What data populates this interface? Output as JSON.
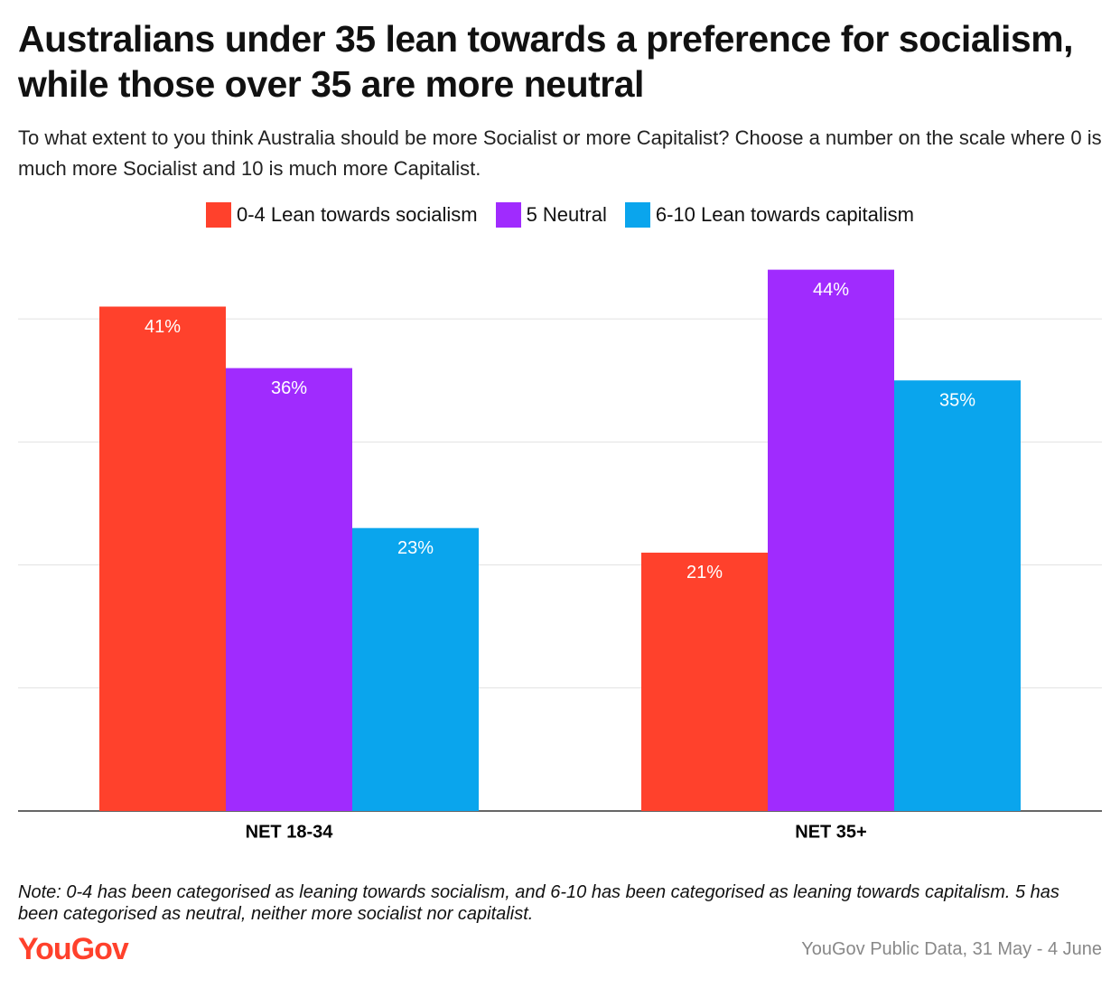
{
  "title": "Australians under 35 lean towards a preference for socialism, while those over 35 are more neutral",
  "subtitle": "To what extent to you think Australia should be more Socialist or more Capitalist? Choose a number on the scale where 0 is much more Socialist and 10 is much more Capitalist.",
  "note": "Note: 0-4 has been categorised as leaning towards socialism, and 6-10 has been categorised as leaning towards capitalism. 5 has been categorised as neutral, neither more socialist nor capitalist.",
  "logo": "YouGov",
  "source": "YouGov Public Data, 31 May - 4 June",
  "chart_data": {
    "type": "bar",
    "categories": [
      "NET 18-34",
      "NET 35+"
    ],
    "series": [
      {
        "name": "0-4 Lean towards socialism",
        "color": "#ff412c",
        "values": [
          41,
          21
        ],
        "value_labels": [
          "41%",
          "21%"
        ]
      },
      {
        "name": "5 Neutral",
        "color": "#a02bfe",
        "values": [
          36,
          44
        ],
        "value_labels": [
          "36%",
          "44%"
        ]
      },
      {
        "name": "6-10 Lean towards capitalism",
        "color": "#0aa5ed",
        "values": [
          23,
          35
        ],
        "value_labels": [
          "23%",
          "35%"
        ]
      }
    ],
    "ylim": [
      0,
      45
    ],
    "yticks": [
      0,
      10,
      20,
      30,
      40
    ],
    "grid": true
  }
}
